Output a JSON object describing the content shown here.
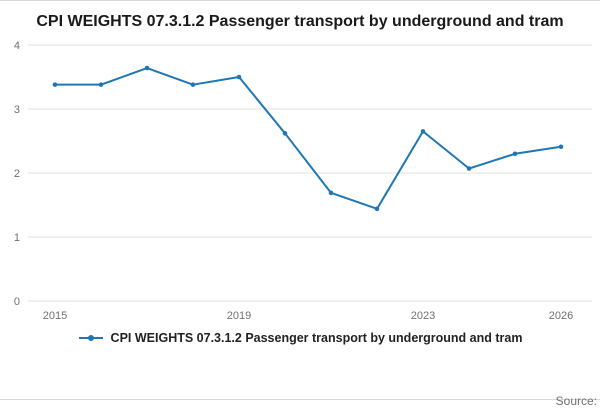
{
  "chart_data": {
    "type": "line",
    "title": "CPI WEIGHTS 07.3.1.2 Passenger transport by underground and tram",
    "x": [
      2015,
      2016,
      2017,
      2018,
      2019,
      2020,
      2021,
      2022,
      2023,
      2024,
      2025,
      2026
    ],
    "series": [
      {
        "name": "CPI WEIGHTS 07.3.1.2 Passenger transport by underground and tram",
        "values": [
          3.38,
          3.38,
          3.64,
          3.38,
          3.5,
          2.62,
          1.69,
          1.44,
          2.65,
          2.07,
          2.3,
          2.41
        ]
      }
    ],
    "xticks": [
      2015,
      2019,
      2023,
      2026
    ],
    "yticks": [
      0,
      1,
      2,
      3,
      4
    ],
    "ylim": [
      0,
      4
    ],
    "grid": true,
    "legend_position": "bottom",
    "line_color": "#1f77b4",
    "grid_color": "#e2e2e2"
  },
  "footer": {
    "source_label": "Source:"
  }
}
